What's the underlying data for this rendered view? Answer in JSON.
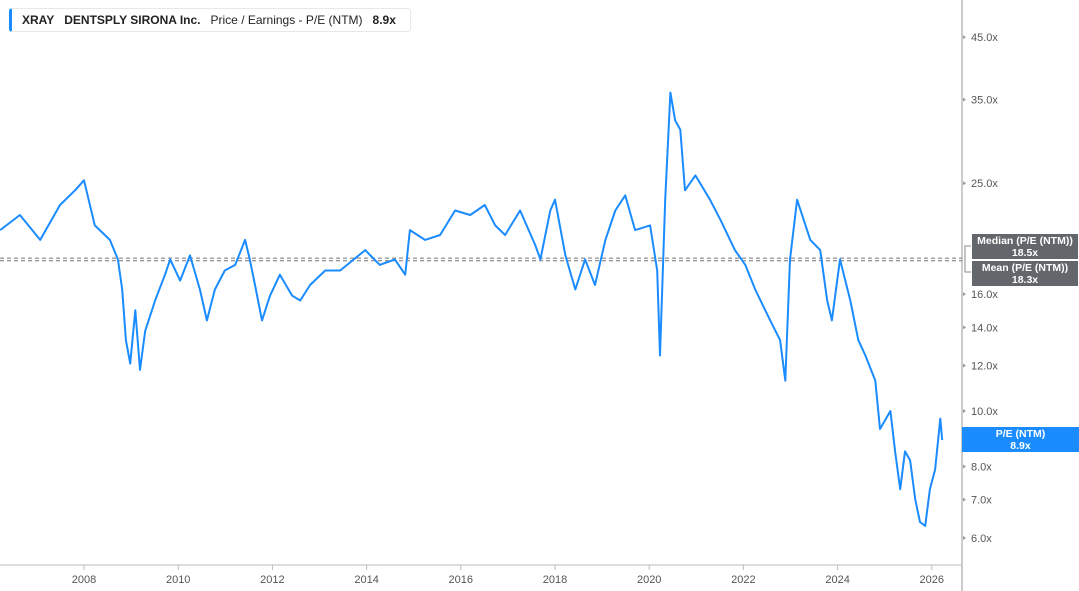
{
  "legend": {
    "ticker": "XRAY",
    "company": "DENTSPLY SIRONA Inc.",
    "metric": "Price / Earnings - P/E (NTM)",
    "value": "8.9x",
    "color": "#1a8cff"
  },
  "chart_data": {
    "type": "line",
    "title": "XRAY DENTSPLY SIRONA Inc. Price / Earnings - P/E (NTM)",
    "xlabel": "",
    "ylabel": "",
    "y_scale": "log",
    "ylim": [
      5.3,
      52
    ],
    "xlim": [
      2006.22,
      2026.6
    ],
    "x_ticks": [
      "2008",
      "2010",
      "2012",
      "2014",
      "2016",
      "2018",
      "2020",
      "2022",
      "2024",
      "2026"
    ],
    "y_ticks": [
      {
        "v": 45,
        "label": "45.0x"
      },
      {
        "v": 35,
        "label": "35.0x"
      },
      {
        "v": 25,
        "label": "25.0x"
      },
      {
        "v": 16,
        "label": "16.0x"
      },
      {
        "v": 14,
        "label": "14.0x"
      },
      {
        "v": 12,
        "label": "12.0x"
      },
      {
        "v": 10,
        "label": "10.0x"
      },
      {
        "v": 8,
        "label": "8.0x"
      },
      {
        "v": 7,
        "label": "7.0x"
      },
      {
        "v": 6,
        "label": "6.0x"
      }
    ],
    "series": [
      {
        "name": "P/E (NTM)",
        "color": "#1a8cff",
        "points": [
          [
            2006.22,
            20.7
          ],
          [
            2006.64,
            22.0
          ],
          [
            2007.07,
            19.9
          ],
          [
            2007.49,
            22.9
          ],
          [
            2007.81,
            24.3
          ],
          [
            2008.0,
            25.3
          ],
          [
            2008.23,
            21.1
          ],
          [
            2008.55,
            19.9
          ],
          [
            2008.72,
            18.4
          ],
          [
            2008.81,
            16.3
          ],
          [
            2008.89,
            13.3
          ],
          [
            2008.98,
            12.1
          ],
          [
            2009.09,
            15.0
          ],
          [
            2009.19,
            11.8
          ],
          [
            2009.3,
            13.8
          ],
          [
            2009.51,
            15.6
          ],
          [
            2009.72,
            17.3
          ],
          [
            2009.83,
            18.4
          ],
          [
            2010.04,
            16.9
          ],
          [
            2010.25,
            18.7
          ],
          [
            2010.46,
            16.3
          ],
          [
            2010.61,
            14.4
          ],
          [
            2010.78,
            16.3
          ],
          [
            2010.99,
            17.6
          ],
          [
            2011.21,
            18.0
          ],
          [
            2011.42,
            19.9
          ],
          [
            2011.52,
            18.4
          ],
          [
            2011.63,
            16.6
          ],
          [
            2011.78,
            14.4
          ],
          [
            2011.95,
            15.9
          ],
          [
            2012.16,
            17.3
          ],
          [
            2012.42,
            15.9
          ],
          [
            2012.59,
            15.6
          ],
          [
            2012.8,
            16.6
          ],
          [
            2013.12,
            17.6
          ],
          [
            2013.44,
            17.6
          ],
          [
            2013.97,
            19.1
          ],
          [
            2014.28,
            18.0
          ],
          [
            2014.6,
            18.4
          ],
          [
            2014.82,
            17.3
          ],
          [
            2014.92,
            20.7
          ],
          [
            2015.24,
            19.9
          ],
          [
            2015.56,
            20.3
          ],
          [
            2015.88,
            22.4
          ],
          [
            2016.2,
            22.0
          ],
          [
            2016.51,
            22.9
          ],
          [
            2016.73,
            21.1
          ],
          [
            2016.94,
            20.3
          ],
          [
            2017.26,
            22.4
          ],
          [
            2017.58,
            19.5
          ],
          [
            2017.69,
            18.4
          ],
          [
            2017.9,
            22.4
          ],
          [
            2018.0,
            23.4
          ],
          [
            2018.22,
            18.7
          ],
          [
            2018.43,
            16.3
          ],
          [
            2018.64,
            18.4
          ],
          [
            2018.85,
            16.6
          ],
          [
            2019.07,
            19.9
          ],
          [
            2019.28,
            22.4
          ],
          [
            2019.49,
            23.8
          ],
          [
            2019.7,
            20.7
          ],
          [
            2020.02,
            21.1
          ],
          [
            2020.17,
            17.6
          ],
          [
            2020.23,
            12.5
          ],
          [
            2020.34,
            23.4
          ],
          [
            2020.45,
            36.0
          ],
          [
            2020.55,
            32.2
          ],
          [
            2020.66,
            31.0
          ],
          [
            2020.76,
            24.3
          ],
          [
            2020.98,
            25.8
          ],
          [
            2021.29,
            23.4
          ],
          [
            2021.51,
            21.6
          ],
          [
            2021.82,
            19.1
          ],
          [
            2022.04,
            18.0
          ],
          [
            2022.25,
            16.3
          ],
          [
            2022.57,
            14.4
          ],
          [
            2022.78,
            13.3
          ],
          [
            2022.89,
            11.3
          ],
          [
            2022.99,
            18.4
          ],
          [
            2023.14,
            23.4
          ],
          [
            2023.42,
            19.9
          ],
          [
            2023.63,
            19.1
          ],
          [
            2023.78,
            15.6
          ],
          [
            2023.88,
            14.4
          ],
          [
            2024.05,
            18.4
          ],
          [
            2024.27,
            15.6
          ],
          [
            2024.44,
            13.3
          ],
          [
            2024.59,
            12.5
          ],
          [
            2024.8,
            11.3
          ],
          [
            2024.9,
            9.3
          ],
          [
            2025.12,
            10.0
          ],
          [
            2025.22,
            8.5
          ],
          [
            2025.33,
            7.3
          ],
          [
            2025.43,
            8.5
          ],
          [
            2025.54,
            8.2
          ],
          [
            2025.65,
            7.0
          ],
          [
            2025.75,
            6.4
          ],
          [
            2025.86,
            6.3
          ],
          [
            2025.96,
            7.3
          ],
          [
            2026.07,
            7.9
          ],
          [
            2026.18,
            9.7
          ],
          [
            2026.22,
            8.9
          ]
        ]
      }
    ],
    "reference_lines": [
      {
        "name": "Median (P/E (NTM))",
        "value": 18.5,
        "label": "Median (P/E (NTM))",
        "value_label": "18.5x"
      },
      {
        "name": "Mean (P/E (NTM))",
        "value": 18.3,
        "label": "Mean (P/E (NTM))",
        "value_label": "18.3x"
      }
    ],
    "current": {
      "label": "P/E (NTM)",
      "value": 8.9,
      "value_label": "8.9x"
    }
  }
}
